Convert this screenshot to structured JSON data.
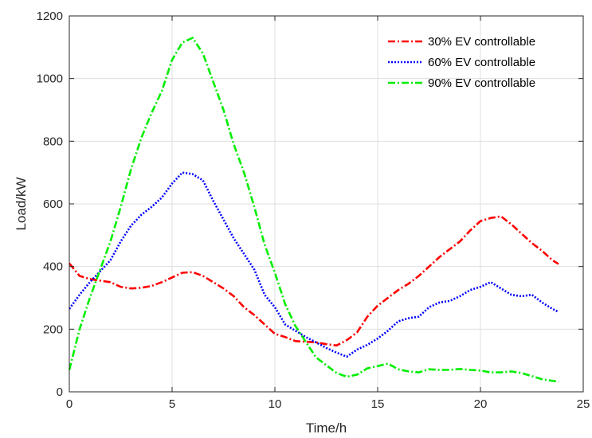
{
  "chart_data": {
    "type": "line",
    "title": "",
    "xlabel": "Time/h",
    "ylabel": "Load/kW",
    "xlim": [
      0,
      25
    ],
    "ylim": [
      0,
      1200
    ],
    "xticks": [
      0,
      5,
      10,
      15,
      20,
      25
    ],
    "yticks": [
      0,
      200,
      400,
      600,
      800,
      1000,
      1200
    ],
    "grid": true,
    "legend_position": "top-right",
    "series": [
      {
        "name": "30% EV controllable",
        "color": "#ff0000",
        "style": "dash-dot",
        "x": [
          0,
          0.5,
          1,
          1.5,
          2,
          2.5,
          3,
          3.5,
          4,
          4.5,
          5,
          5.5,
          6,
          6.5,
          7,
          7.5,
          8,
          8.5,
          9,
          9.5,
          10,
          10.5,
          11,
          11.5,
          12,
          12.5,
          13,
          13.5,
          14,
          14.5,
          15,
          15.5,
          16,
          16.5,
          17,
          17.5,
          18,
          18.5,
          19,
          19.5,
          20,
          20.5,
          21,
          21.5,
          22,
          22.5,
          23,
          23.5,
          23.8
        ],
        "values": [
          410,
          370,
          360,
          355,
          350,
          335,
          330,
          332,
          338,
          350,
          365,
          380,
          382,
          370,
          350,
          330,
          305,
          270,
          245,
          215,
          185,
          175,
          162,
          160,
          158,
          152,
          148,
          165,
          190,
          240,
          275,
          300,
          325,
          345,
          370,
          400,
          430,
          455,
          480,
          515,
          545,
          555,
          560,
          535,
          505,
          475,
          450,
          420,
          408
        ]
      },
      {
        "name": "60% EV controllable",
        "color": "#0000ff",
        "style": "dotted",
        "x": [
          0,
          0.5,
          1,
          1.5,
          2,
          2.5,
          3,
          3.5,
          4,
          4.5,
          5,
          5.5,
          6,
          6.5,
          7,
          7.5,
          8,
          8.5,
          9,
          9.5,
          10,
          10.5,
          11,
          11.5,
          12,
          12.5,
          13,
          13.5,
          14,
          14.5,
          15,
          15.5,
          16,
          16.5,
          17,
          17.5,
          18,
          18.5,
          19,
          19.5,
          20,
          20.5,
          21,
          21.5,
          22,
          22.5,
          23,
          23.5,
          23.8
        ],
        "values": [
          265,
          310,
          350,
          385,
          420,
          480,
          530,
          565,
          590,
          620,
          665,
          700,
          695,
          675,
          610,
          550,
          490,
          440,
          390,
          310,
          270,
          215,
          195,
          175,
          158,
          140,
          125,
          112,
          135,
          150,
          170,
          195,
          225,
          235,
          240,
          270,
          285,
          290,
          305,
          325,
          335,
          350,
          330,
          310,
          305,
          310,
          285,
          265,
          255
        ]
      },
      {
        "name": "90% EV controllable",
        "color": "#00ee00",
        "style": "dash-dot",
        "x": [
          0,
          0.5,
          1,
          1.5,
          2,
          2.5,
          3,
          3.5,
          4,
          4.5,
          5,
          5.5,
          6,
          6.5,
          7,
          7.5,
          8,
          8.5,
          9,
          9.5,
          10,
          10.5,
          11,
          11.5,
          12,
          12.5,
          13,
          13.5,
          14,
          14.5,
          15,
          15.5,
          16,
          16.5,
          17,
          17.5,
          18,
          18.5,
          19,
          19.5,
          20,
          20.5,
          21,
          21.5,
          22,
          22.5,
          23,
          23.5,
          23.8
        ],
        "values": [
          70,
          200,
          300,
          390,
          480,
          590,
          710,
          810,
          890,
          960,
          1060,
          1115,
          1130,
          1080,
          990,
          900,
          790,
          700,
          590,
          470,
          380,
          280,
          210,
          160,
          110,
          85,
          60,
          48,
          55,
          75,
          82,
          90,
          72,
          65,
          62,
          72,
          70,
          70,
          73,
          70,
          68,
          62,
          62,
          65,
          60,
          50,
          40,
          35,
          32
        ]
      }
    ]
  }
}
